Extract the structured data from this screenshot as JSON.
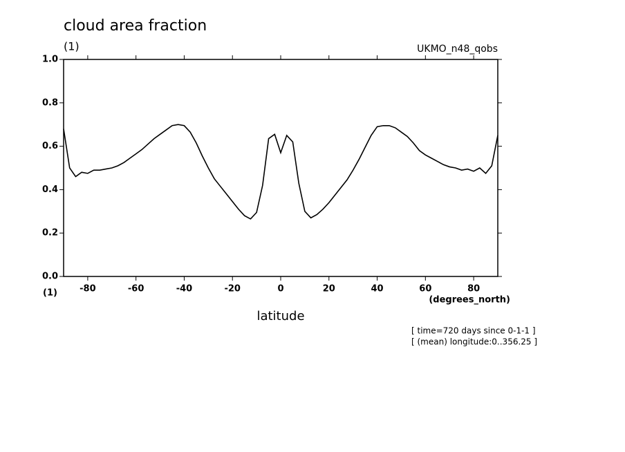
{
  "chart_data": {
    "type": "line",
    "title": "cloud area fraction",
    "y_units": "(1)",
    "dataset": "UKMO_n48_qobs",
    "x_units_left": "(1)",
    "x_units": "(degrees_north)",
    "xlabel": "latitude",
    "annotations": [
      "[ time=720 days since 0-1-1 ]",
      "[ (mean) longitude:0..356.25 ]"
    ],
    "x": [
      -90,
      -87.5,
      -85,
      -82.5,
      -80,
      -77.5,
      -75,
      -72.5,
      -70,
      -67.5,
      -65,
      -62.5,
      -60,
      -57.5,
      -55,
      -52.5,
      -50,
      -47.5,
      -45,
      -42.5,
      -40,
      -37.5,
      -35,
      -32.5,
      -30,
      -27.5,
      -25,
      -22.5,
      -20,
      -17.5,
      -15,
      -12.5,
      -10,
      -7.5,
      -5,
      -2.5,
      0,
      2.5,
      5,
      7.5,
      10,
      12.5,
      15,
      17.5,
      20,
      22.5,
      25,
      27.5,
      30,
      32.5,
      35,
      37.5,
      40,
      42.5,
      45,
      47.5,
      50,
      52.5,
      55,
      57.5,
      60,
      62.5,
      65,
      67.5,
      70,
      72.5,
      75,
      77.5,
      80,
      82.5,
      85,
      87.5,
      90
    ],
    "series": [
      {
        "color": "#000000",
        "values": [
          0.68,
          0.5,
          0.46,
          0.48,
          0.475,
          0.49,
          0.49,
          0.495,
          0.5,
          0.51,
          0.525,
          0.545,
          0.565,
          0.585,
          0.61,
          0.635,
          0.655,
          0.675,
          0.695,
          0.7,
          0.695,
          0.665,
          0.615,
          0.555,
          0.5,
          0.45,
          0.415,
          0.38,
          0.345,
          0.31,
          0.28,
          0.265,
          0.295,
          0.42,
          0.635,
          0.655,
          0.57,
          0.65,
          0.62,
          0.43,
          0.3,
          0.27,
          0.285,
          0.31,
          0.34,
          0.375,
          0.41,
          0.445,
          0.49,
          0.54,
          0.595,
          0.65,
          0.69,
          0.695,
          0.695,
          0.685,
          0.665,
          0.645,
          0.615,
          0.58,
          0.56,
          0.545,
          0.53,
          0.515,
          0.505,
          0.5,
          0.49,
          0.495,
          0.485,
          0.5,
          0.475,
          0.51,
          0.65
        ]
      }
    ],
    "xlim": [
      -90,
      90
    ],
    "xticks": [
      -80,
      -60,
      -40,
      -20,
      0,
      20,
      40,
      60,
      80
    ],
    "ylim": [
      0,
      1
    ],
    "yticks": [
      {
        "value": 0,
        "label": "0.0"
      },
      0.2,
      0.4,
      0.6,
      0.8,
      {
        "value": 1,
        "label": "1.0"
      }
    ]
  }
}
